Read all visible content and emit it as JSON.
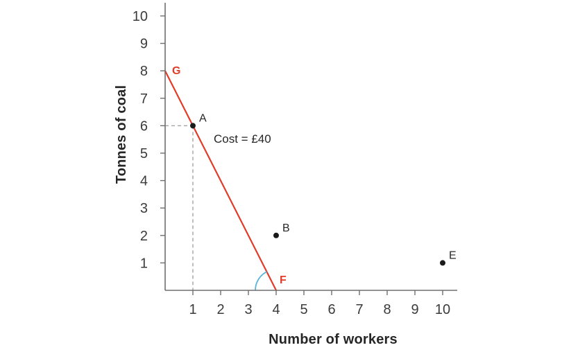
{
  "chart_data": {
    "type": "line",
    "title": "",
    "xlabel": "Number of workers",
    "ylabel": "Tonnes of coal",
    "xlim": [
      0,
      10.5
    ],
    "ylim": [
      0,
      10.5
    ],
    "grid": false,
    "x_ticks": [
      1,
      2,
      3,
      4,
      5,
      6,
      7,
      8,
      9,
      10
    ],
    "y_ticks": [
      1,
      2,
      3,
      4,
      5,
      6,
      7,
      8,
      9,
      10
    ],
    "isocost_line": {
      "name": "isocost-line",
      "from": {
        "x": 0,
        "y": 8
      },
      "to": {
        "x": 4,
        "y": 0
      },
      "start_label": "G",
      "end_label": "F"
    },
    "points": [
      {
        "label": "A",
        "x": 1,
        "y": 6
      },
      {
        "label": "B",
        "x": 4,
        "y": 2
      },
      {
        "label": "E",
        "x": 10,
        "y": 1
      }
    ],
    "guides_at": {
      "x": 1,
      "y": 6
    },
    "annotation": {
      "text": "Cost = £40",
      "x": 1.75,
      "y": 5.38
    },
    "angle_arc": {
      "at_x": 4,
      "at_y": 0,
      "radius_px": 30
    },
    "colors": {
      "line": "#e23b28",
      "line_label": "#e23b28",
      "point": "#1a1a1a",
      "axis": "#6e6e6e",
      "tick_text": "#3b3b3b",
      "dashed": "#a3a3a3",
      "arc": "#56b5d8",
      "annotation_text": "#262626",
      "point_label": "#262626"
    }
  }
}
